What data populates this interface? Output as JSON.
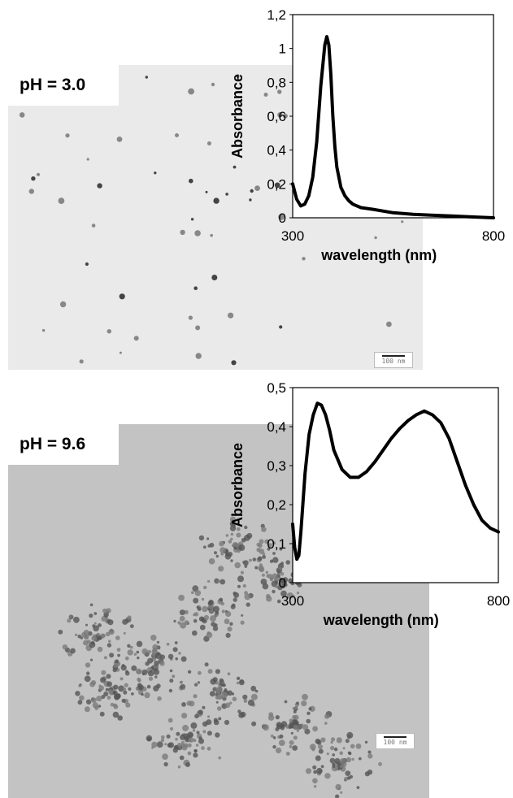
{
  "panels": [
    {
      "label": "pH = 3.0",
      "scale_bar": "100 nm",
      "tem_color": "#eaeaea",
      "chart_data": {
        "type": "line",
        "xlabel": "wavelength (nm)",
        "ylabel": "Absorbance",
        "xlim": [
          300,
          800
        ],
        "ylim": [
          0,
          1.2
        ],
        "x_ticks": [
          "300",
          "800"
        ],
        "y_ticks": [
          "0",
          "0,2",
          "0,4",
          "0,6",
          "0,8",
          "1",
          "1,2"
        ],
        "grid": false,
        "series": [
          {
            "x": [
              300,
              310,
              320,
              330,
              340,
              350,
              360,
              370,
              380,
              385,
              390,
              395,
              400,
              405,
              410,
              420,
              430,
              440,
              450,
              470,
              500,
              550,
              600,
              650,
              700,
              750,
              800
            ],
            "y": [
              0.2,
              0.11,
              0.07,
              0.08,
              0.13,
              0.24,
              0.45,
              0.78,
              1.02,
              1.07,
              1.02,
              0.85,
              0.6,
              0.42,
              0.3,
              0.18,
              0.13,
              0.1,
              0.08,
              0.06,
              0.05,
              0.03,
              0.02,
              0.015,
              0.01,
              0.005,
              0.0
            ]
          }
        ]
      }
    },
    {
      "label": "pH = 9.6",
      "scale_bar": "100 nm",
      "tem_color": "#c3c3c3",
      "chart_data": {
        "type": "line",
        "xlabel": "wavelength (nm)",
        "ylabel": "Absorbance",
        "xlim": [
          300,
          800
        ],
        "ylim": [
          0,
          0.5
        ],
        "x_ticks": [
          "300",
          "800"
        ],
        "y_ticks": [
          "0",
          "0,1",
          "0,2",
          "0,3",
          "0,4",
          "0,5"
        ],
        "grid": false,
        "series": [
          {
            "x": [
              300,
              305,
              310,
              315,
              320,
              330,
              340,
              350,
              360,
              370,
              380,
              390,
              400,
              420,
              440,
              460,
              480,
              500,
              520,
              540,
              560,
              580,
              600,
              620,
              640,
              660,
              680,
              700,
              720,
              740,
              760,
              780,
              800
            ],
            "y": [
              0.15,
              0.09,
              0.06,
              0.07,
              0.13,
              0.28,
              0.38,
              0.43,
              0.46,
              0.455,
              0.43,
              0.39,
              0.34,
              0.29,
              0.27,
              0.27,
              0.285,
              0.31,
              0.34,
              0.37,
              0.395,
              0.415,
              0.43,
              0.44,
              0.43,
              0.41,
              0.37,
              0.31,
              0.25,
              0.2,
              0.16,
              0.14,
              0.13
            ]
          }
        ]
      }
    }
  ]
}
